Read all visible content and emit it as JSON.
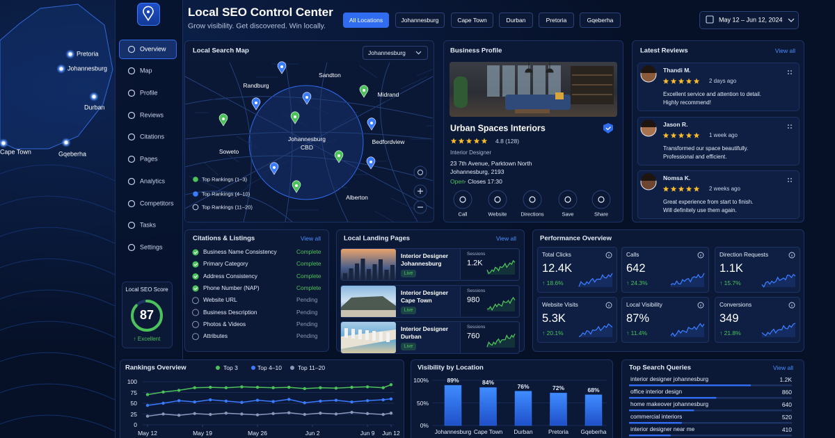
{
  "region_map": {
    "cities": [
      "Pretoria",
      "Johannesburg",
      "Durban",
      "Cape Town",
      "Gqeberha"
    ]
  },
  "sidebar": {
    "nav": [
      "Overview",
      "Map",
      "Profile",
      "Reviews",
      "Citations",
      "Pages",
      "Analytics",
      "Competitors",
      "Tasks",
      "Settings"
    ],
    "score": {
      "title": "Local SEO Score",
      "value": 87,
      "status": "↑ Excellent"
    }
  },
  "header": {
    "title": "Local SEO Control Center",
    "subtitle": "Grow visibility. Get discovered. Win locally.",
    "locations": [
      "All Locations",
      "Johannesburg",
      "Cape Town",
      "Durban",
      "Pretoria",
      "Gqeberha"
    ],
    "date_range": "May 12 – Jun 12, 2024"
  },
  "search_map": {
    "title": "Local Search Map",
    "selected": "Johannesburg",
    "places": [
      "Randburg",
      "Sandton",
      "Midrand",
      "Johannesburg",
      "CBD",
      "Soweto",
      "Bedfordview",
      "Alberton"
    ],
    "legend": [
      "Top Rankings (1–3)",
      "Top Rankings (4–10)",
      "Top Rankings (11–20)"
    ]
  },
  "business_profile": {
    "title": "Business Profile",
    "name": "Urban Spaces Interiors",
    "rating": "4.8 (128)",
    "category": "Interior Designer",
    "address": [
      "23 7th Avenue, Parktown North",
      "Johannesburg, 2193"
    ],
    "open": "Open",
    "hours": "· Closes 17:30",
    "actions": [
      "Call",
      "Website",
      "Directions",
      "Save",
      "Share"
    ]
  },
  "reviews": {
    "title": "Latest Reviews",
    "view_all": "View all",
    "items": [
      {
        "name": "Thandi M.",
        "time": "2 days ago",
        "lines": [
          "Excellent service and attention to detail.",
          "Highly recommend!"
        ]
      },
      {
        "name": "Jason R.",
        "time": "1 week ago",
        "lines": [
          "Transformed our space beautifully.",
          "Professional and efficient."
        ]
      },
      {
        "name": "Nomsa K.",
        "time": "2 weeks ago",
        "lines": [
          "Great experience from start to finish.",
          "Will definitely use them again."
        ]
      }
    ]
  },
  "citations": {
    "title": "Citations & Listings",
    "view_all": "View all",
    "items": [
      {
        "label": "Business Name Consistency",
        "status": "Complete"
      },
      {
        "label": "Primary Category",
        "status": "Complete"
      },
      {
        "label": "Address Consistency",
        "status": "Complete"
      },
      {
        "label": "Phone Number (NAP)",
        "status": "Complete"
      },
      {
        "label": "Website URL",
        "status": "Pending"
      },
      {
        "label": "Business Description",
        "status": "Pending"
      },
      {
        "label": "Photos & Videos",
        "status": "Pending"
      },
      {
        "label": "Attributes",
        "status": "Pending"
      }
    ]
  },
  "landing_pages": {
    "title": "Local Landing Pages",
    "view_all": "View all",
    "sessions_label": "Sessions",
    "live_label": "Live",
    "items": [
      {
        "title": [
          "Interior Designer",
          "Johannesburg"
        ],
        "sessions": "1.2K"
      },
      {
        "title": [
          "Interior Designer",
          "Cape Town"
        ],
        "sessions": "980"
      },
      {
        "title": [
          "Interior Designer",
          "Durban"
        ],
        "sessions": "760"
      }
    ]
  },
  "performance": {
    "title": "Performance Overview",
    "tiles": [
      {
        "label": "Total Clicks",
        "value": "12.4K",
        "change": "↑ 18.6%"
      },
      {
        "label": "Calls",
        "value": "642",
        "change": "↑ 24.3%"
      },
      {
        "label": "Direction Requests",
        "value": "1.1K",
        "change": "↑ 15.7%"
      },
      {
        "label": "Website Visits",
        "value": "5.3K",
        "change": "↑ 20.1%"
      },
      {
        "label": "Local Visibility",
        "value": "87%",
        "change": "↑ 11.4%"
      },
      {
        "label": "Conversions",
        "value": "349",
        "change": "↑ 21.8%"
      }
    ]
  },
  "rankings": {
    "type": "line",
    "title": "Rankings Overview",
    "x": [
      0,
      2,
      4,
      6,
      8,
      10,
      12,
      14,
      16,
      18,
      20,
      22,
      24,
      26,
      28,
      30,
      31
    ],
    "xlim": [
      0,
      31
    ],
    "xticks": [
      {
        "value": 0,
        "label": "May 12"
      },
      {
        "value": 7,
        "label": "May 19"
      },
      {
        "value": 14,
        "label": "May 26"
      },
      {
        "value": 21,
        "label": "Jun 2"
      },
      {
        "value": 28,
        "label": "Jun 9"
      },
      {
        "value": 31,
        "label": "Jun 12"
      }
    ],
    "ylim": [
      0,
      100
    ],
    "yticks": [
      0,
      25,
      50,
      75,
      100
    ],
    "series": [
      {
        "name": "Top 3",
        "color": "#4cc35a",
        "values": [
          70,
          76,
          80,
          86,
          87,
          86,
          88,
          87,
          86,
          87,
          84,
          86,
          85,
          87,
          88,
          86,
          93
        ]
      },
      {
        "name": "Top 4–10",
        "color": "#3a7bff",
        "values": [
          45,
          50,
          56,
          53,
          58,
          55,
          52,
          57,
          54,
          59,
          51,
          55,
          57,
          53,
          56,
          58,
          60
        ]
      },
      {
        "name": "Top 11–20",
        "color": "#8b97b8",
        "values": [
          20,
          25,
          22,
          26,
          24,
          27,
          25,
          23,
          26,
          28,
          24,
          27,
          25,
          29,
          26,
          24,
          27
        ]
      }
    ]
  },
  "visibility": {
    "type": "bar",
    "title": "Visibility by Location",
    "categories": [
      "Johannesburg",
      "Cape Town",
      "Durban",
      "Pretoria",
      "Gqeberha"
    ],
    "values": [
      89,
      84,
      76,
      72,
      68
    ],
    "value_labels": [
      "89%",
      "84%",
      "76%",
      "72%",
      "68%"
    ],
    "color": "#2f7bff",
    "ylim": [
      0,
      100
    ],
    "yticks": [
      {
        "value": 0,
        "label": "0%"
      },
      {
        "value": 50,
        "label": "50%"
      },
      {
        "value": 100,
        "label": "100%"
      }
    ]
  },
  "top_queries": {
    "type": "bar",
    "title": "Top Search Queries",
    "view_all": "View all",
    "categories": [
      "interior designer johannesburg",
      "office interior design",
      "home makeover johannesburg",
      "commercial interiors",
      "interior designer near me"
    ],
    "values": [
      1200,
      860,
      640,
      520,
      410
    ],
    "value_labels": [
      "1.2K",
      "860",
      "640",
      "520",
      "410"
    ],
    "color": "#2f6cf0"
  }
}
